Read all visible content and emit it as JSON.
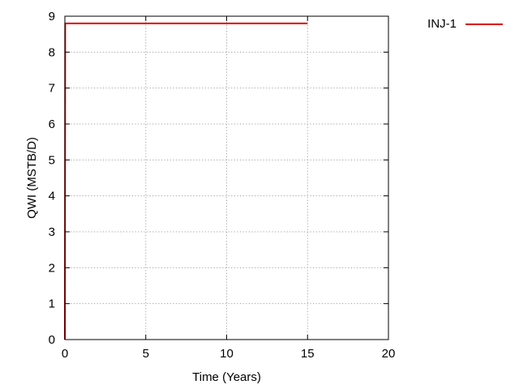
{
  "chart_data": {
    "type": "line",
    "title": "",
    "xlabel": "Time (Years)",
    "ylabel": "QWI (MSTB/D)",
    "xlim": [
      0,
      20
    ],
    "ylim": [
      0,
      9
    ],
    "xticks": [
      0,
      5,
      10,
      15,
      20
    ],
    "yticks": [
      0,
      1,
      2,
      3,
      4,
      5,
      6,
      7,
      8,
      9
    ],
    "grid": true,
    "legend": "top-right",
    "series": [
      {
        "name": "INJ-1",
        "color": "#dd0000",
        "x": [
          0,
          0.02,
          0.1,
          15
        ],
        "y": [
          0,
          8.8,
          8.8,
          8.8
        ]
      }
    ]
  }
}
